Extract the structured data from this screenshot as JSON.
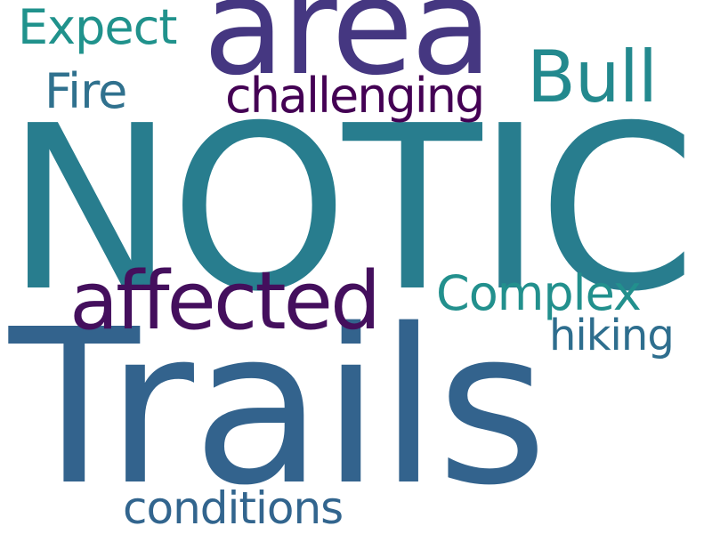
{
  "words": {
    "notice": {
      "text": "NOTICE",
      "color": "#287d8e"
    },
    "trails": {
      "text": "Trails",
      "color": "#33638d"
    },
    "area": {
      "text": "area",
      "color": "#453781"
    },
    "affected": {
      "text": "affected",
      "color": "#440f5d"
    },
    "bull": {
      "text": "Bull",
      "color": "#23898e"
    },
    "complex": {
      "text": "Complex",
      "color": "#22908d"
    },
    "challenging": {
      "text": "challenging",
      "color": "#440154"
    },
    "expect": {
      "text": "Expect",
      "color": "#20928c"
    },
    "fire": {
      "text": "Fire",
      "color": "#30718e"
    },
    "hiking": {
      "text": "hiking",
      "color": "#2e6e8e"
    },
    "conditions": {
      "text": "conditions",
      "color": "#32658e"
    }
  }
}
